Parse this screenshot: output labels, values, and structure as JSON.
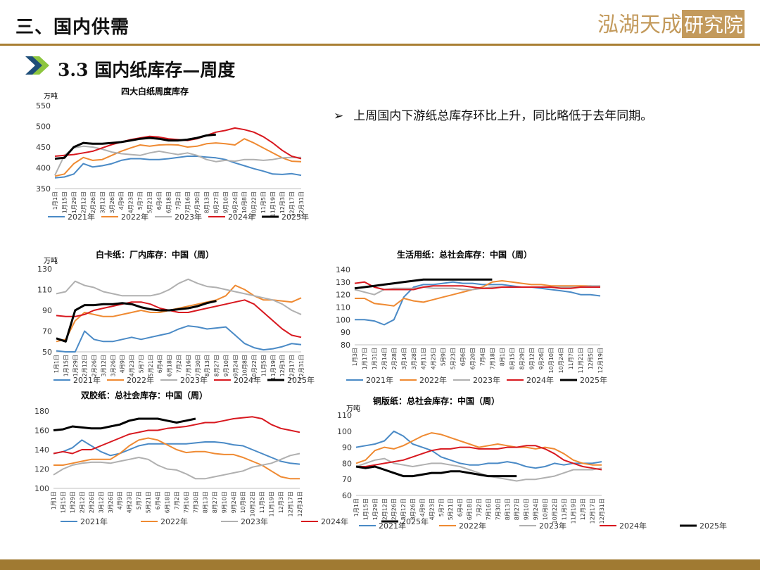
{
  "header": {
    "title": "三、国内供需",
    "logo_text": "泓湖天成研究院"
  },
  "section": {
    "title": "3.3 国内纸库存—周度"
  },
  "bullet": {
    "mark": "➢",
    "text": "上周国内下游纸总库存环比上升，同比略低于去年同期。"
  },
  "colors": {
    "accent": "#a97f33",
    "y2021": "#4a8ac6",
    "y2022": "#ef8a32",
    "y2023": "#b0b0b0",
    "y2024": "#d8181f",
    "y2025": "#000000"
  },
  "chart_data": [
    {
      "type": "line",
      "title": "四大白纸周度库存",
      "unit": "万吨",
      "ylim": [
        350,
        550
      ],
      "yticks": [
        350,
        400,
        450,
        500,
        550
      ],
      "xlabels": [
        "1月1日",
        "1月15日",
        "1月29日",
        "2月12日",
        "2月26日",
        "3月12日",
        "3月26日",
        "4月9日",
        "4月23日",
        "5月7日",
        "5月21日",
        "6月4日",
        "6月18日",
        "7月2日",
        "7月16日",
        "7月30日",
        "8月13日",
        "8月27日",
        "9月10日",
        "9月24日",
        "10月8日",
        "10月22日",
        "11月5日",
        "11月19日",
        "12月3日",
        "12月17日",
        "12月31日"
      ],
      "legend": "bottom",
      "series": [
        {
          "name": "2021年",
          "values": [
            376,
            378,
            385,
            410,
            402,
            405,
            410,
            418,
            422,
            422,
            420,
            420,
            422,
            425,
            428,
            428,
            426,
            424,
            420,
            412,
            405,
            398,
            392,
            385,
            384,
            386,
            382
          ]
        },
        {
          "name": "2022年",
          "values": [
            380,
            385,
            410,
            425,
            418,
            420,
            430,
            440,
            448,
            455,
            452,
            455,
            456,
            455,
            450,
            452,
            458,
            460,
            458,
            455,
            470,
            460,
            448,
            436,
            424,
            416,
            415
          ]
        },
        {
          "name": "2023年",
          "values": [
            382,
            430,
            448,
            452,
            450,
            445,
            438,
            434,
            432,
            430,
            436,
            440,
            436,
            432,
            436,
            430,
            420,
            415,
            418,
            416,
            420,
            420,
            418,
            420,
            424,
            425,
            425
          ]
        },
        {
          "name": "2024年",
          "values": [
            428,
            430,
            432,
            436,
            440,
            448,
            456,
            462,
            468,
            472,
            476,
            474,
            470,
            468,
            466,
            470,
            478,
            486,
            490,
            496,
            492,
            486,
            475,
            460,
            442,
            428,
            422
          ]
        },
        {
          "name": "2025年",
          "values": [
            422,
            424,
            450,
            460,
            458,
            458,
            460,
            462,
            466,
            470,
            472,
            470,
            466,
            466,
            468,
            472,
            478,
            480,
            null,
            null,
            null,
            null,
            null,
            null,
            null,
            null,
            null
          ]
        }
      ]
    },
    {
      "type": "line",
      "title": "白卡纸：厂内库存：中国（周）",
      "unit": "万吨",
      "ylim": [
        50,
        130
      ],
      "yticks": [
        50,
        70,
        90,
        110,
        130
      ],
      "xlabels": [
        "1月1日",
        "1月15日",
        "1月29日",
        "2月12日",
        "2月26日",
        "3月12日",
        "3月26日",
        "4月9日",
        "4月23日",
        "5月7日",
        "5月21日",
        "6月4日",
        "6月18日",
        "7月2日",
        "7月16日",
        "7月30日",
        "8月13日",
        "8月27日",
        "9月10日",
        "9月24日",
        "10月8日",
        "10月22日",
        "11月5日",
        "11月19日",
        "12月3日",
        "12月17日",
        "12月31日"
      ],
      "legend": "bottom",
      "series": [
        {
          "name": "2021年",
          "values": [
            51,
            50,
            50,
            70,
            62,
            60,
            60,
            62,
            64,
            62,
            64,
            66,
            68,
            72,
            75,
            74,
            72,
            73,
            74,
            66,
            58,
            54,
            52,
            53,
            55,
            58,
            57
          ]
        },
        {
          "name": "2022年",
          "values": [
            60,
            62,
            80,
            88,
            86,
            84,
            84,
            86,
            88,
            90,
            88,
            88,
            90,
            92,
            94,
            96,
            98,
            100,
            104,
            114,
            110,
            104,
            100,
            100,
            99,
            98,
            102
          ]
        },
        {
          "name": "2023年",
          "values": [
            106,
            108,
            118,
            114,
            112,
            108,
            106,
            104,
            104,
            104,
            104,
            106,
            110,
            116,
            120,
            116,
            113,
            112,
            110,
            108,
            106,
            104,
            102,
            100,
            96,
            90,
            86
          ]
        },
        {
          "name": "2024年",
          "values": [
            85,
            84,
            84,
            86,
            90,
            92,
            94,
            96,
            98,
            98,
            96,
            92,
            90,
            88,
            88,
            90,
            92,
            94,
            96,
            98,
            100,
            96,
            88,
            80,
            72,
            66,
            64
          ]
        },
        {
          "name": "2025年",
          "values": [
            63,
            60,
            90,
            95,
            95,
            96,
            96,
            97,
            96,
            93,
            91,
            90,
            90,
            91,
            92,
            94,
            97,
            99,
            null,
            null,
            null,
            null,
            null,
            null,
            null,
            null,
            null
          ]
        }
      ]
    },
    {
      "type": "line",
      "title": "生活用纸：总社会库存：中国（周）",
      "unit": "",
      "ylim": [
        80,
        140
      ],
      "yticks": [
        80,
        90,
        100,
        110,
        120,
        130,
        140
      ],
      "xlabels": [
        "1月3日",
        "1月17日",
        "1月31日",
        "2月14日",
        "2月28日",
        "3月14日",
        "3月28日",
        "4月11日",
        "4月25日",
        "5月9日",
        "5月23日",
        "6月6日",
        "6月20日",
        "7月4日",
        "7月18日",
        "8月1日",
        "8月15日",
        "8月29日",
        "9月12日",
        "9月26日",
        "10月10日",
        "10月24日",
        "11月7日",
        "11月21日",
        "12月5日",
        "12月19日"
      ],
      "legend": "bottom",
      "series": [
        {
          "name": "2021年",
          "values": [
            100,
            100,
            99,
            96,
            100,
            118,
            126,
            128,
            128,
            129,
            130,
            129,
            129,
            128,
            128,
            128,
            127,
            126,
            126,
            125,
            124,
            123,
            122,
            120,
            120,
            119
          ]
        },
        {
          "name": "2022年",
          "values": [
            117,
            117,
            113,
            112,
            111,
            117,
            115,
            114,
            116,
            118,
            120,
            122,
            124,
            126,
            130,
            131,
            130,
            129,
            128,
            128,
            127,
            127,
            127,
            127,
            127,
            126
          ]
        },
        {
          "name": "2023年",
          "values": [
            124,
            122,
            120,
            124,
            125,
            125,
            125,
            126,
            125,
            125,
            125,
            124,
            124,
            125,
            126,
            126,
            126,
            126,
            126,
            126,
            126,
            126,
            126,
            126,
            127,
            127
          ]
        },
        {
          "name": "2024年",
          "values": [
            129,
            130,
            126,
            124,
            124,
            124,
            124,
            126,
            127,
            127,
            127,
            127,
            126,
            125,
            125,
            126,
            126,
            126,
            126,
            126,
            126,
            125,
            125,
            126,
            126,
            126
          ]
        },
        {
          "name": "2025年",
          "values": [
            125,
            126,
            127,
            128,
            129,
            130,
            131,
            132,
            132,
            132,
            132,
            132,
            132,
            132,
            132,
            null,
            null,
            null,
            null,
            null,
            null,
            null,
            null,
            null,
            null,
            null
          ]
        }
      ]
    },
    {
      "type": "line",
      "title": "双胶纸：总社会库存：中国（周）",
      "unit": "",
      "ylim": [
        100,
        180
      ],
      "yticks": [
        100,
        120,
        140,
        160,
        180
      ],
      "xlabels": [
        "1月1日",
        "1月15日",
        "1月29日",
        "2月12日",
        "2月26日",
        "3月12日",
        "3月26日",
        "4月9日",
        "4月23日",
        "5月7日",
        "5月21日",
        "6月4日",
        "6月18日",
        "7月2日",
        "7月16日",
        "7月30日",
        "8月13日",
        "8月27日",
        "9月10日",
        "9月24日",
        "10月8日",
        "10月22日",
        "11月5日",
        "11月19日",
        "12月3日",
        "12月17日",
        "12月31日"
      ],
      "legend": "bottom",
      "series": [
        {
          "name": "2021年",
          "values": [
            136,
            138,
            142,
            150,
            144,
            138,
            134,
            136,
            140,
            144,
            146,
            146,
            146,
            146,
            146,
            147,
            148,
            148,
            147,
            145,
            144,
            140,
            136,
            132,
            128,
            126,
            125
          ]
        },
        {
          "name": "2022年",
          "values": [
            124,
            124,
            126,
            128,
            130,
            130,
            130,
            136,
            144,
            150,
            152,
            150,
            145,
            140,
            137,
            138,
            138,
            136,
            135,
            135,
            132,
            128,
            124,
            118,
            112,
            110,
            110
          ]
        },
        {
          "name": "2023年",
          "values": [
            114,
            120,
            124,
            126,
            127,
            127,
            126,
            128,
            130,
            132,
            130,
            124,
            120,
            119,
            115,
            110,
            110,
            112,
            114,
            116,
            118,
            122,
            124,
            126,
            130,
            134,
            136
          ]
        },
        {
          "name": "2024年",
          "values": [
            136,
            138,
            136,
            140,
            140,
            144,
            148,
            152,
            156,
            158,
            160,
            160,
            162,
            163,
            164,
            166,
            168,
            168,
            170,
            172,
            173,
            174,
            172,
            166,
            162,
            160,
            158
          ]
        },
        {
          "name": "2025年",
          "values": [
            160,
            161,
            164,
            163,
            162,
            162,
            164,
            166,
            170,
            172,
            172,
            172,
            170,
            168,
            170,
            172,
            null,
            null,
            null,
            null,
            null,
            null,
            null,
            null,
            null,
            null,
            null
          ]
        }
      ]
    },
    {
      "type": "line",
      "title": "铜版纸：总社会库存：中国（周）",
      "unit": "万吨",
      "ylim": [
        60,
        110
      ],
      "yticks": [
        60,
        70,
        80,
        90,
        100,
        110
      ],
      "xlabels": [
        "1月1日",
        "1月15日",
        "1月29日",
        "2月12日",
        "2月26日",
        "3月12日",
        "3月26日",
        "4月9日",
        "4月23日",
        "5月7日",
        "5月21日",
        "6月4日",
        "6月18日",
        "7月2日",
        "7月16日",
        "7月30日",
        "8月13日",
        "8月27日",
        "9月10日",
        "9月24日",
        "10月8日",
        "10月22日",
        "11月5日",
        "11月19日",
        "12月3日",
        "12月17日",
        "12月31日"
      ],
      "legend": "bottom",
      "series": [
        {
          "name": "2021年",
          "values": [
            90,
            91,
            92,
            94,
            100,
            97,
            92,
            90,
            88,
            84,
            82,
            80,
            79,
            79,
            80,
            80,
            81,
            80,
            78,
            77,
            78,
            80,
            79,
            80,
            80,
            80,
            81
          ]
        },
        {
          "name": "2022年",
          "values": [
            80,
            82,
            88,
            90,
            89,
            91,
            94,
            97,
            99,
            98,
            96,
            94,
            92,
            90,
            91,
            92,
            91,
            90,
            90,
            89,
            90,
            89,
            86,
            82,
            80,
            79,
            79
          ]
        },
        {
          "name": "2023年",
          "values": [
            78,
            80,
            82,
            83,
            80,
            79,
            78,
            79,
            80,
            80,
            79,
            78,
            76,
            74,
            72,
            71,
            70,
            69,
            70,
            70,
            71,
            72,
            74,
            76,
            76,
            76,
            77
          ]
        },
        {
          "name": "2024年",
          "values": [
            78,
            78,
            79,
            80,
            81,
            82,
            84,
            86,
            88,
            89,
            89,
            90,
            90,
            89,
            89,
            89,
            90,
            90,
            91,
            91,
            89,
            86,
            82,
            80,
            78,
            77,
            76
          ]
        },
        {
          "name": "2025年",
          "values": [
            78,
            77,
            78,
            76,
            74,
            72,
            72,
            73,
            74,
            74,
            75,
            75,
            74,
            73,
            72,
            72,
            72,
            72,
            null,
            null,
            null,
            null,
            null,
            null,
            null,
            null,
            null
          ]
        }
      ]
    }
  ]
}
